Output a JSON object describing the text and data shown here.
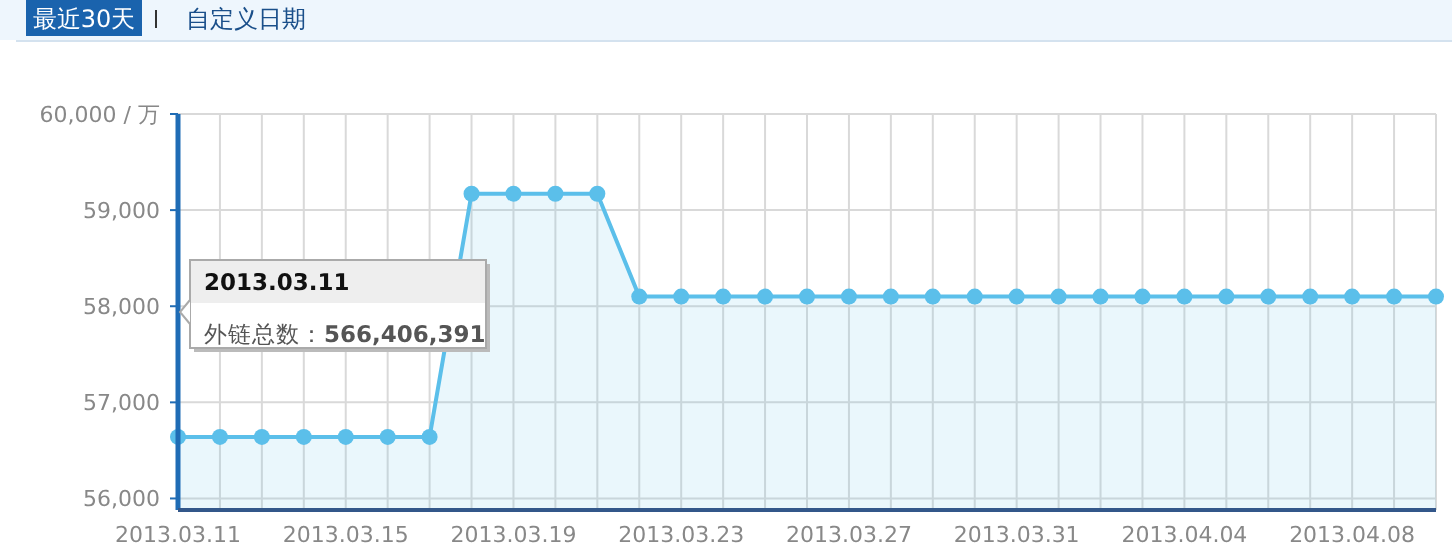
{
  "chart_data": {
    "type": "area",
    "x": [
      "2013-03-11",
      "2013-03-12",
      "2013-03-13",
      "2013-03-14",
      "2013-03-15",
      "2013-03-16",
      "2013-03-17",
      "2013-03-18",
      "2013-03-19",
      "2013-03-20",
      "2013-03-21",
      "2013-03-22",
      "2013-03-23",
      "2013-03-24",
      "2013-03-25",
      "2013-03-26",
      "2013-03-27",
      "2013-03-28",
      "2013-03-29",
      "2013-03-30",
      "2013-03-31",
      "2013-04-01",
      "2013-04-02",
      "2013-04-03",
      "2013-04-04",
      "2013-04-05",
      "2013-04-06",
      "2013-04-07",
      "2013-04-08",
      "2013-04-09",
      "2013-04-10"
    ],
    "series": [
      {
        "color": "#5bbfea",
        "values": [
          56640,
          56640,
          56640,
          56640,
          56640,
          56640,
          56640,
          59170,
          59170,
          59170,
          59170,
          58100,
          58100,
          58100,
          58100,
          58100,
          58100,
          58100,
          58100,
          58100,
          58100,
          58100,
          58100,
          58100,
          58100,
          58100,
          58100,
          58100,
          58100,
          58100,
          58100
        ]
      }
    ],
    "xlim": [
      "2013-03-11",
      "2013-04-10"
    ],
    "ylim": [
      55880,
      60000
    ],
    "xticks": [
      {
        "value": "2013-03-11",
        "label": "2013.03.11"
      },
      {
        "value": "2013-03-12",
        "label": null
      },
      {
        "value": "2013-03-13",
        "label": null
      },
      {
        "value": "2013-03-14",
        "label": null
      },
      {
        "value": "2013-03-15",
        "label": "2013.03.15"
      },
      {
        "value": "2013-03-16",
        "label": null
      },
      {
        "value": "2013-03-17",
        "label": null
      },
      {
        "value": "2013-03-18",
        "label": null
      },
      {
        "value": "2013-03-19",
        "label": "2013.03.19"
      },
      {
        "value": "2013-03-20",
        "label": null
      },
      {
        "value": "2013-03-21",
        "label": null
      },
      {
        "value": "2013-03-22",
        "label": null
      },
      {
        "value": "2013-03-23",
        "label": "2013.03.23"
      },
      {
        "value": "2013-03-24",
        "label": null
      },
      {
        "value": "2013-03-25",
        "label": null
      },
      {
        "value": "2013-03-26",
        "label": null
      },
      {
        "value": "2013-03-27",
        "label": "2013.03.27"
      },
      {
        "value": "2013-03-28",
        "label": null
      },
      {
        "value": "2013-03-29",
        "label": null
      },
      {
        "value": "2013-03-30",
        "label": null
      },
      {
        "value": "2013-03-31",
        "label": "2013.03.31"
      },
      {
        "value": "2013-04-01",
        "label": null
      },
      {
        "value": "2013-04-02",
        "label": null
      },
      {
        "value": "2013-04-03",
        "label": null
      },
      {
        "value": "2013-04-04",
        "label": "2013.04.04"
      },
      {
        "value": "2013-04-05",
        "label": null
      },
      {
        "value": "2013-04-06",
        "label": null
      },
      {
        "value": "2013-04-07",
        "label": null
      },
      {
        "value": "2013-04-08",
        "label": "2013.04.08"
      },
      {
        "value": "2013-04-09",
        "label": null
      },
      {
        "value": "2013-04-10",
        "label": null
      }
    ],
    "yticks": [
      {
        "value": 56000,
        "label": "56,000"
      },
      {
        "value": 57000,
        "label": "57,000"
      },
      {
        "value": 58000,
        "label": "58,000"
      },
      {
        "value": 59000,
        "label": "59,000"
      },
      {
        "value": 60000,
        "label": "60,000 / 万"
      }
    ],
    "grid": true,
    "marker": "circle",
    "annotations": [
      "最近30天",
      "自定义日期",
      "2013.03.11",
      "外链总数：**566,406,391**"
    ]
  }
}
